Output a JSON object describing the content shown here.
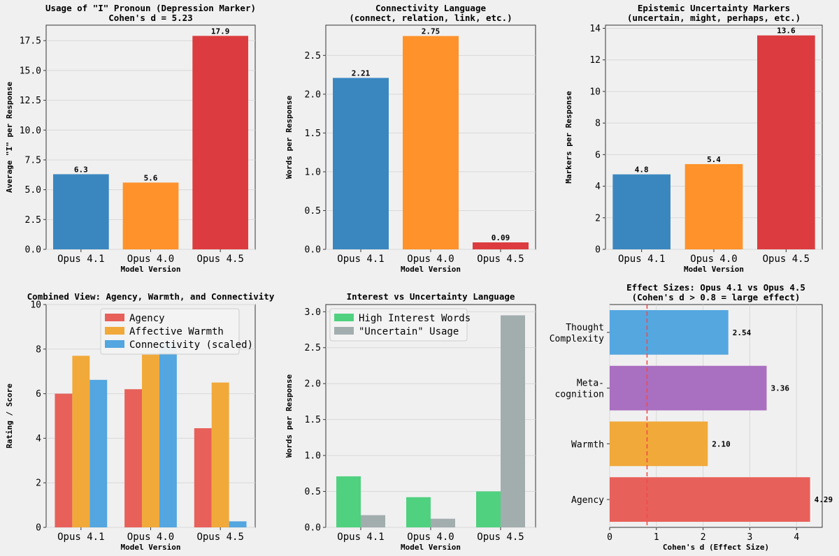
{
  "chart_data": [
    {
      "id": "p1",
      "type": "bar",
      "title": "Usage of \"I\" Pronoun (Depression Marker)",
      "subtitle": "Cohen's d = 5.23",
      "xlabel": "Model Version",
      "ylabel": "Average \"I\" per Response",
      "categories": [
        "Opus 4.1",
        "Opus 4.0",
        "Opus 4.5"
      ],
      "values": [
        6.3,
        5.6,
        17.9
      ],
      "value_labels": [
        "6.3",
        "5.6",
        "17.9"
      ],
      "colors": [
        "#3a87c0",
        "#ff922b",
        "#dc3c3f"
      ],
      "ylim": [
        0,
        18.8
      ],
      "yticks": [
        0,
        2.5,
        5,
        7.5,
        10,
        12.5,
        15,
        17.5
      ],
      "ytick_labels": [
        "0.0",
        "2.5",
        "5.0",
        "7.5",
        "10.0",
        "12.5",
        "15.0",
        "17.5"
      ],
      "grid": true
    },
    {
      "id": "p2",
      "type": "bar",
      "title": "Connectivity Language",
      "subtitle": "(connect, relation, link, etc.)",
      "xlabel": "Model Version",
      "ylabel": "Words per Response",
      "categories": [
        "Opus 4.1",
        "Opus 4.0",
        "Opus 4.5"
      ],
      "values": [
        2.21,
        2.75,
        0.09
      ],
      "value_labels": [
        "2.21",
        "2.75",
        "0.09"
      ],
      "colors": [
        "#3a87c0",
        "#ff922b",
        "#dc3c3f"
      ],
      "ylim": [
        0,
        2.89
      ],
      "yticks": [
        0,
        0.5,
        1,
        1.5,
        2,
        2.5
      ],
      "ytick_labels": [
        "0.0",
        "0.5",
        "1.0",
        "1.5",
        "2.0",
        "2.5"
      ],
      "grid": true
    },
    {
      "id": "p3",
      "type": "bar",
      "title": "Epistemic Uncertainty Markers",
      "subtitle": "(uncertain, might, perhaps, etc.)",
      "xlabel": "Model Version",
      "ylabel": "Markers per Response",
      "categories": [
        "Opus 4.1",
        "Opus 4.0",
        "Opus 4.5"
      ],
      "values": [
        4.75,
        5.4,
        13.55
      ],
      "value_labels": [
        "4.8",
        "5.4",
        "13.6"
      ],
      "colors": [
        "#3a87c0",
        "#ff922b",
        "#dc3c3f"
      ],
      "ylim": [
        0,
        14.2
      ],
      "yticks": [
        0,
        2,
        4,
        6,
        8,
        10,
        12,
        14
      ],
      "ytick_labels": [
        "0",
        "2",
        "4",
        "6",
        "8",
        "10",
        "12",
        "14"
      ],
      "grid": true
    },
    {
      "id": "p4",
      "type": "bar",
      "title": "Combined View: Agency, Warmth, and Connectivity",
      "subtitle": "",
      "xlabel": "Model Version",
      "ylabel": "Rating / Score",
      "categories": [
        "Opus 4.1",
        "Opus 4.0",
        "Opus 4.5"
      ],
      "series": [
        {
          "name": "Agency",
          "values": [
            6.0,
            6.2,
            4.45
          ],
          "color": "#e8605a"
        },
        {
          "name": "Affective Warmth",
          "values": [
            7.7,
            7.75,
            6.5
          ],
          "color": "#f1a93a"
        },
        {
          "name": "Connectivity (scaled)",
          "values": [
            6.62,
            8.25,
            0.27
          ],
          "color": "#53a6df"
        }
      ],
      "ylim": [
        0,
        10
      ],
      "yticks": [
        0,
        2,
        4,
        6,
        8,
        10
      ],
      "ytick_labels": [
        "0",
        "2",
        "4",
        "6",
        "8",
        "10"
      ],
      "legend": "top-center",
      "grid": true
    },
    {
      "id": "p5",
      "type": "bar",
      "title": "Interest vs Uncertainty Language",
      "subtitle": "",
      "xlabel": "Model Version",
      "ylabel": "Words per Response",
      "categories": [
        "Opus 4.1",
        "Opus 4.0",
        "Opus 4.5"
      ],
      "series": [
        {
          "name": "High Interest Words",
          "values": [
            0.71,
            0.42,
            0.5
          ],
          "color": "#4fd17f"
        },
        {
          "name": "\"Uncertain\" Usage",
          "values": [
            0.17,
            0.12,
            2.95
          ],
          "color": "#a2adae"
        }
      ],
      "ylim": [
        0,
        3.1
      ],
      "yticks": [
        0,
        0.5,
        1,
        1.5,
        2,
        2.5,
        3
      ],
      "ytick_labels": [
        "0.0",
        "0.5",
        "1.0",
        "1.5",
        "2.0",
        "2.5",
        "3.0"
      ],
      "legend": "top-left",
      "grid": true
    },
    {
      "id": "p6",
      "type": "barh",
      "title": "Effect Sizes: Opus 4.1 vs Opus 4.5",
      "subtitle": "(Cohen's d > 0.8 = large effect)",
      "xlabel": "Cohen's d (Effect Size)",
      "ylabel": "",
      "categories": [
        "Agency",
        "Warmth",
        "Meta-\ncognition",
        "Thought\nComplexity"
      ],
      "values": [
        4.29,
        2.1,
        3.36,
        2.54
      ],
      "value_labels": [
        "4.29",
        "2.10",
        "3.36",
        "2.54"
      ],
      "colors": [
        "#e8605a",
        "#f1a93a",
        "#a96fc0",
        "#55a7e0"
      ],
      "xlim": [
        0,
        4.55
      ],
      "xticks": [
        0,
        1,
        2,
        3,
        4
      ],
      "xtick_labels": [
        "0",
        "1",
        "2",
        "3",
        "4"
      ],
      "threshold": 0.8,
      "grid": true
    }
  ]
}
